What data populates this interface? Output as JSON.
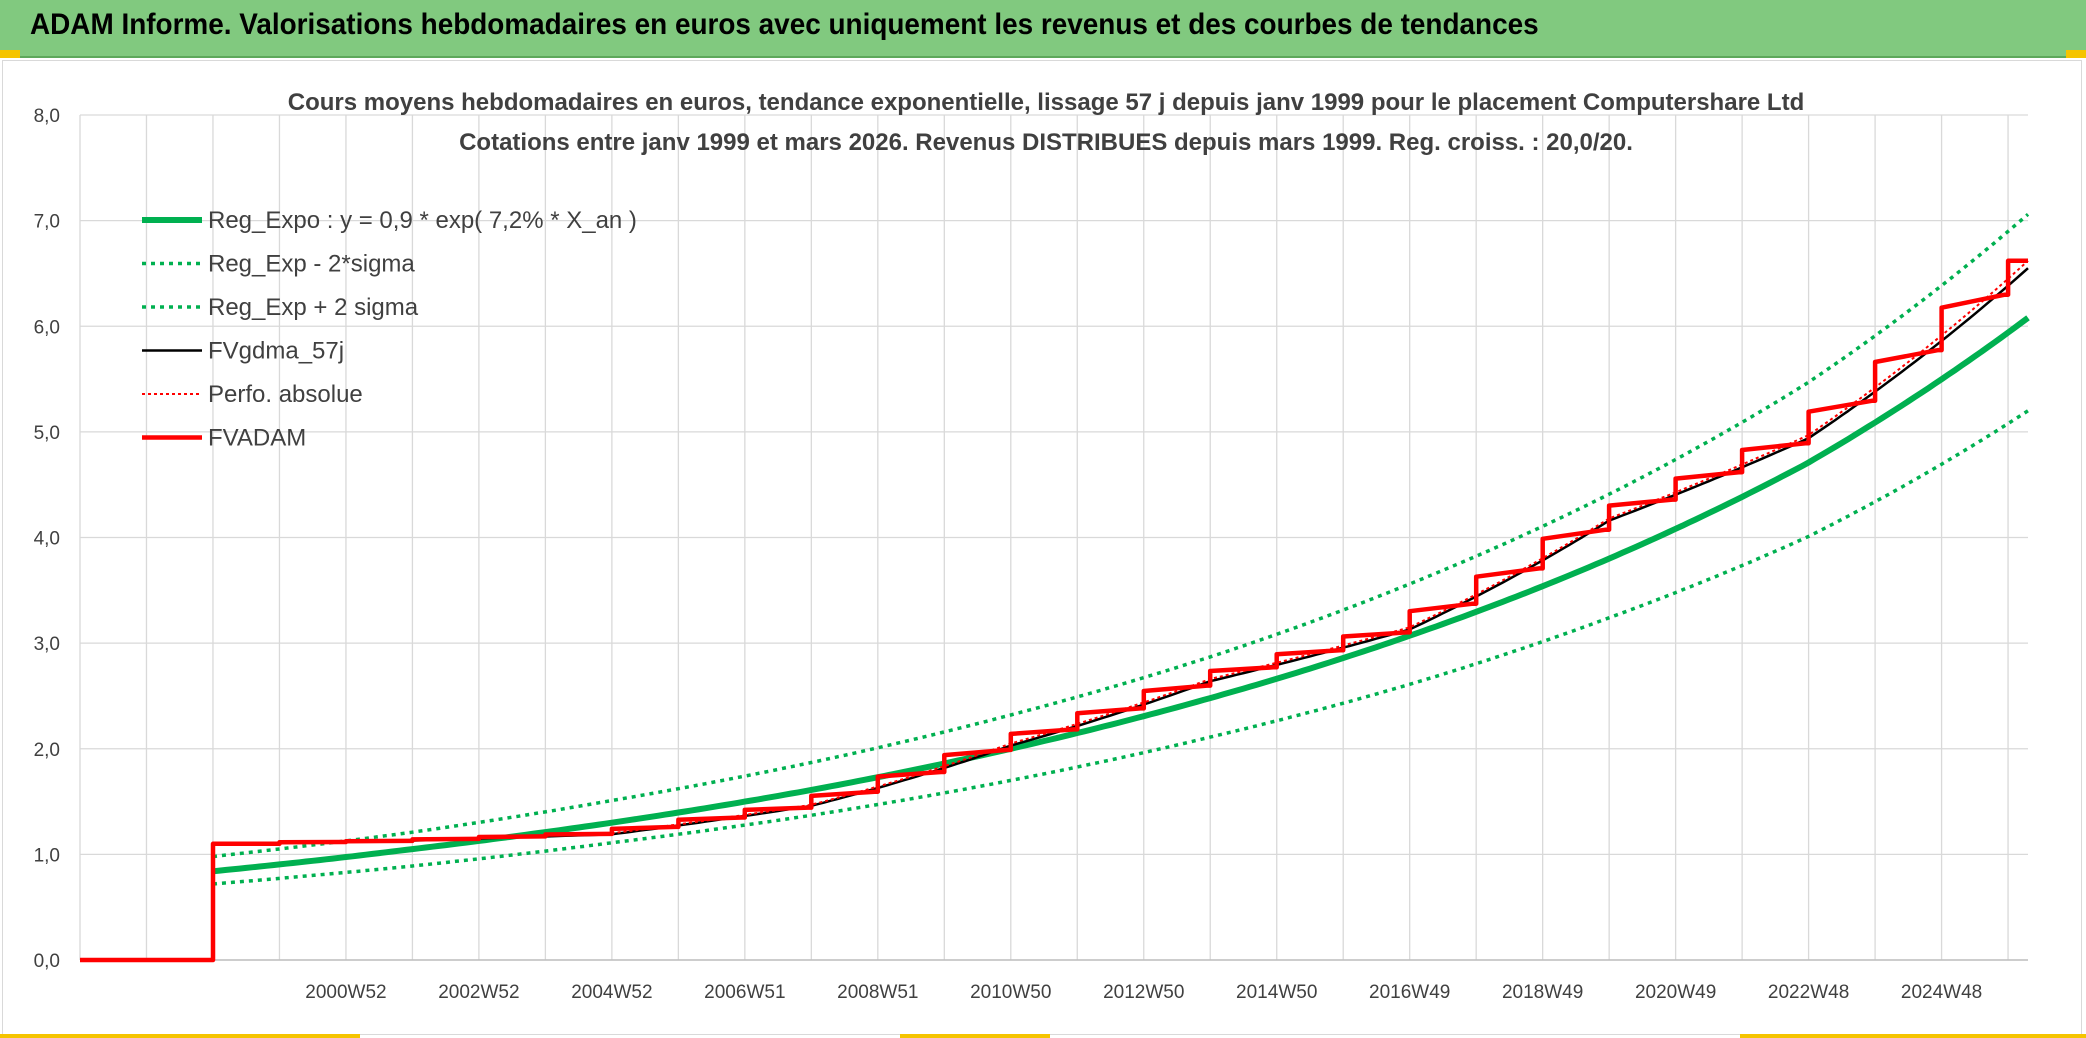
{
  "header": {
    "title": "ADAM Informe. Valorisations hebdomadaires en euros avec uniquement les revenus et des courbes de tendances"
  },
  "colors": {
    "header_bg": "#81c97f",
    "green": "#00b050",
    "black": "#000000",
    "red": "#ff0000",
    "grid": "#d9d9d9",
    "text": "#404040"
  },
  "chart_data": {
    "type": "line",
    "title": "Cours moyens hebdomadaires en euros, tendance exponentielle, lissage 57 j depuis janv 1999 pour le placement Computershare Ltd",
    "subtitle": "Cotations entre janv 1999 et mars 2026. Revenus DISTRIBUES depuis mars 1999. Reg. croiss. : 20,0/20.",
    "xlabel": "",
    "ylabel": "",
    "ylim": [
      0,
      8
    ],
    "x_range_years": [
      1997,
      2026.3
    ],
    "y_ticks": [
      "0,0",
      "1,0",
      "2,0",
      "3,0",
      "4,0",
      "5,0",
      "6,0",
      "7,0",
      "8,0"
    ],
    "x_ticks": [
      {
        "label": "2000W52",
        "year": 2001
      },
      {
        "label": "2002W52",
        "year": 2003
      },
      {
        "label": "2004W52",
        "year": 2005
      },
      {
        "label": "2006W51",
        "year": 2007
      },
      {
        "label": "2008W51",
        "year": 2009
      },
      {
        "label": "2010W50",
        "year": 2011
      },
      {
        "label": "2012W50",
        "year": 2013
      },
      {
        "label": "2014W50",
        "year": 2015
      },
      {
        "label": "2016W49",
        "year": 2017
      },
      {
        "label": "2018W49",
        "year": 2019
      },
      {
        "label": "2020W49",
        "year": 2021
      },
      {
        "label": "2022W48",
        "year": 2023
      },
      {
        "label": "2024W48",
        "year": 2025
      }
    ],
    "grid": true,
    "legend_position": "top-left",
    "series": [
      {
        "name": "Reg_Expo : y = 0,9 * exp( 7,2% *  X_an )",
        "style": "solid-thick",
        "color": "#00b050",
        "x": [
          1999,
          2002,
          2005,
          2008,
          2011,
          2014,
          2017,
          2020,
          2023,
          2026.3
        ],
        "y": [
          0.84,
          1.05,
          1.3,
          1.61,
          2.0,
          2.48,
          3.07,
          3.8,
          4.71,
          6.08
        ]
      },
      {
        "name": "Reg_Exp - 2*sigma",
        "style": "dotted",
        "color": "#00b050",
        "x": [
          1999,
          2002,
          2005,
          2008,
          2011,
          2014,
          2017,
          2020,
          2023,
          2026.3
        ],
        "y": [
          0.72,
          0.89,
          1.11,
          1.37,
          1.7,
          2.11,
          2.61,
          3.24,
          4.01,
          5.2
        ]
      },
      {
        "name": "Reg_Exp + 2 sigma",
        "style": "dotted",
        "color": "#00b050",
        "x": [
          1999,
          2002,
          2005,
          2008,
          2011,
          2014,
          2017,
          2020,
          2023,
          2026.3
        ],
        "y": [
          0.98,
          1.21,
          1.51,
          1.87,
          2.32,
          2.87,
          3.56,
          4.41,
          5.47,
          7.06
        ]
      },
      {
        "name": "FVgdma_57j",
        "style": "solid",
        "color": "#000000",
        "x": [
          1997,
          1999,
          2002,
          2005,
          2008,
          2011,
          2014,
          2017,
          2020,
          2023,
          2026.3
        ],
        "y": [
          0,
          1.1,
          1.13,
          1.19,
          1.46,
          2.03,
          2.64,
          3.13,
          4.16,
          4.94,
          6.55
        ]
      },
      {
        "name": "Perfo. absolue",
        "style": "dotted",
        "color": "#ff0000",
        "x": [
          1997,
          1999,
          2002,
          2005,
          2008,
          2011,
          2014,
          2017,
          2020,
          2023,
          2026.3
        ],
        "y": [
          0,
          1.1,
          1.13,
          1.2,
          1.47,
          2.05,
          2.66,
          3.15,
          4.18,
          4.97,
          6.62
        ]
      },
      {
        "name": "FVADAM",
        "style": "solid-thick-steps",
        "color": "#ff0000",
        "x": [
          1997,
          1999,
          2002,
          2005,
          2008,
          2011,
          2014,
          2017,
          2020,
          2023,
          2026.3
        ],
        "y": [
          0,
          1.1,
          1.13,
          1.2,
          1.47,
          2.05,
          2.66,
          3.15,
          4.18,
          4.97,
          6.62
        ]
      }
    ]
  }
}
